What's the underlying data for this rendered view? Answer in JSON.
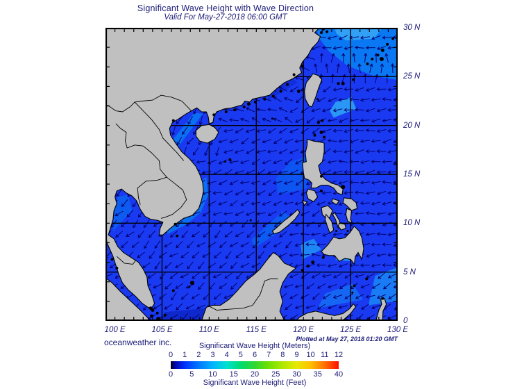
{
  "title": "Significant Wave Height with Wave Direction",
  "subtitle": "Valid For May-27-2018 06:00 GMT",
  "footer": {
    "credit": "oceanweather inc.",
    "plotted_note": "Plotted at May 27, 2018 01:20 GMT"
  },
  "axes": {
    "lon_ticks": [
      {
        "label": "100 E",
        "lon": 100
      },
      {
        "label": "105 E",
        "lon": 105
      },
      {
        "label": "110 E",
        "lon": 110
      },
      {
        "label": "115 E",
        "lon": 115
      },
      {
        "label": "120 E",
        "lon": 120
      },
      {
        "label": "125 E",
        "lon": 125
      },
      {
        "label": "130 E",
        "lon": 130
      }
    ],
    "lat_ticks": [
      {
        "label": "30 N",
        "lat": 30
      },
      {
        "label": "25 N",
        "lat": 25
      },
      {
        "label": "20 N",
        "lat": 20
      },
      {
        "label": "15 N",
        "lat": 15
      },
      {
        "label": "10 N",
        "lat": 10
      },
      {
        "label": "5 N",
        "lat": 5
      },
      {
        "label": "0",
        "lat": 0
      }
    ]
  },
  "legend": {
    "meters_label": "Significant Wave Height (Meters)",
    "feet_label": "Significant Wave Height (Feet)",
    "meters_ticks": [
      "0",
      "1",
      "2",
      "3",
      "4",
      "5",
      "6",
      "7",
      "8",
      "9",
      "10",
      "11",
      "12"
    ],
    "feet_ticks": [
      "0",
      "5",
      "10",
      "15",
      "20",
      "25",
      "30",
      "35",
      "40"
    ],
    "colormap_stops": [
      [
        0.0,
        "#000000"
      ],
      [
        0.02,
        "#0000a0"
      ],
      [
        0.083,
        "#0030ff"
      ],
      [
        0.167,
        "#0078ff"
      ],
      [
        0.25,
        "#00b4ff"
      ],
      [
        0.333,
        "#00e0d0"
      ],
      [
        0.417,
        "#00dc70"
      ],
      [
        0.5,
        "#30d830"
      ],
      [
        0.583,
        "#70e000"
      ],
      [
        0.667,
        "#b0e800"
      ],
      [
        0.75,
        "#e8e800"
      ],
      [
        0.833,
        "#ffc000"
      ],
      [
        0.917,
        "#ff7000"
      ],
      [
        1.0,
        "#ff0e00"
      ]
    ]
  },
  "chart_data": {
    "type": "map",
    "title": "Significant Wave Height with Wave Direction",
    "valid_time": "May-27-2018 06:00 GMT",
    "plotted_time": "May 27, 2018 01:20 GMT",
    "lon_range_deg_east": [
      99,
      130
    ],
    "lat_range_deg_north": [
      0,
      30
    ],
    "grid_interval_deg": 5,
    "scale_meters": [
      0,
      12
    ],
    "scale_feet": [
      0,
      40
    ]
  },
  "colors": {
    "text": "#1c1c78",
    "land": "#c0c0c0",
    "coastline": "#000000",
    "sea": "#1a3af2",
    "sea_light": "#0a78f2",
    "sea_lighter": "#31a0f5",
    "sea_dark": "#112ed8",
    "arrow": "#00006e",
    "grid": "#000000",
    "border": "#000000"
  }
}
